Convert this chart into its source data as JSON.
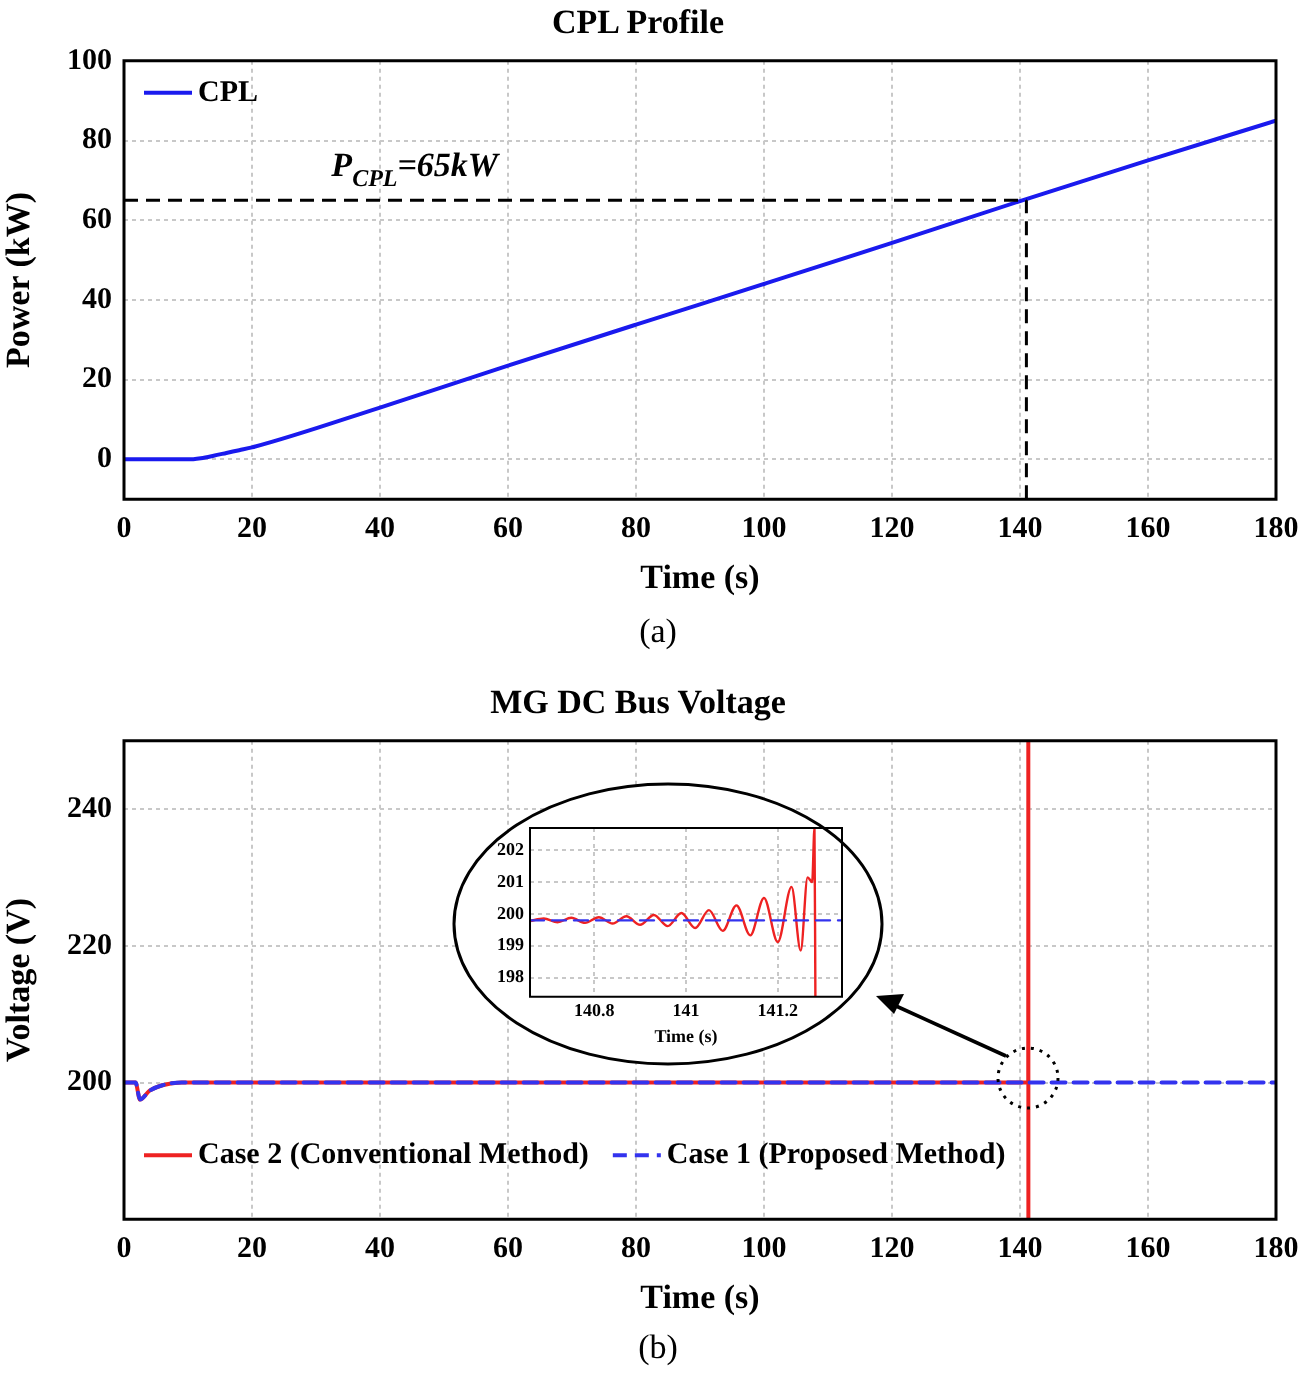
{
  "chart_data": [
    {
      "type": "line",
      "title": "CPL Profile",
      "xlabel": "Time (s)",
      "ylabel": "Power (kW)",
      "xlim": [
        0,
        180
      ],
      "xticks": [
        0,
        20,
        40,
        60,
        80,
        100,
        120,
        140,
        160,
        180
      ],
      "ylim": [
        -10,
        100
      ],
      "yticks": [
        0,
        20,
        40,
        60,
        80,
        100
      ],
      "grid": true,
      "legend": "top left",
      "annotations": [
        "(a)"
      ],
      "ref_lines": [
        {
          "axis": "y",
          "value": 65,
          "label": "P$_{CPL}$=65kW",
          "color": "#000000",
          "line_style": "dashed"
        },
        {
          "axis": "x",
          "value": 141,
          "color": "#000000",
          "line_style": "dashed"
        }
      ],
      "series": [
        {
          "name": "CPL",
          "color": "#1a1aee",
          "line_style": "solid",
          "x": [
            0,
            10,
            12,
            14,
            16,
            18,
            20,
            40,
            60,
            80,
            100,
            120,
            140,
            160,
            180
          ],
          "values": [
            0,
            0,
            0.3,
            0.9,
            1.6,
            2.3,
            3,
            13,
            23.5,
            33.8,
            44,
            54.3,
            64.8,
            75,
            85
          ]
        }
      ]
    },
    {
      "type": "line",
      "title": "MG DC Bus Voltage",
      "xlabel": "Time (s)",
      "ylabel": "Voltage (V)",
      "xlim": [
        0,
        180
      ],
      "xticks": [
        0,
        20,
        40,
        60,
        80,
        100,
        120,
        140,
        160,
        180
      ],
      "ylim": [
        180,
        250
      ],
      "yticks": [
        200,
        220,
        240
      ],
      "grid": true,
      "legend": "bottom left",
      "annotations": [
        "(b)"
      ],
      "series": [
        {
          "name": "Case 2 (Conventional Method)",
          "color": "#ee2222",
          "line_style": "solid",
          "x": [
            0,
            1.8,
            2.5,
            4,
            6,
            9,
            20,
            60,
            100,
            140,
            141.29,
            141.3,
            141.31
          ],
          "values": [
            200,
            200,
            197.5,
            198.8,
            199.6,
            200,
            200,
            200,
            200,
            200,
            200,
            250,
            180
          ]
        },
        {
          "name": "Case 1 (Proposed Method)",
          "color": "#3333ee",
          "line_style": "dashed",
          "x": [
            0,
            1.8,
            2.5,
            4,
            6,
            9,
            60,
            120,
            180
          ],
          "values": [
            200,
            200,
            197.5,
            198.8,
            199.6,
            200,
            200,
            200,
            200
          ]
        }
      ]
    },
    {
      "type": "line",
      "xlabel": "Time (s)",
      "xlim": [
        140.66,
        141.34
      ],
      "xticks": [
        140.8,
        141,
        141.2
      ],
      "ylim": [
        197.4,
        202.7
      ],
      "yticks": [
        198,
        199,
        200,
        201,
        202
      ],
      "grid": true,
      "series": [
        {
          "color": "#ee2222",
          "line_style": "solid",
          "x": [
            140.66,
            140.69,
            140.72,
            140.75,
            140.78,
            140.81,
            140.84,
            140.87,
            140.9,
            140.93,
            140.96,
            140.99,
            141.02,
            141.05,
            141.08,
            141.11,
            141.14,
            141.17,
            141.2,
            141.23,
            141.25,
            141.265,
            141.275,
            141.28,
            141.282
          ],
          "values": [
            199.78,
            199.86,
            199.74,
            199.88,
            199.72,
            199.9,
            199.7,
            199.93,
            199.66,
            199.97,
            199.62,
            200.03,
            199.56,
            200.12,
            199.47,
            200.27,
            199.33,
            200.5,
            199.12,
            200.85,
            198.85,
            201.15,
            201,
            202.7,
            197.4
          ]
        },
        {
          "color": "#3333ee",
          "line_style": "dashed",
          "x": [
            140.66,
            141.34
          ],
          "values": [
            199.8,
            199.8
          ]
        }
      ]
    }
  ]
}
